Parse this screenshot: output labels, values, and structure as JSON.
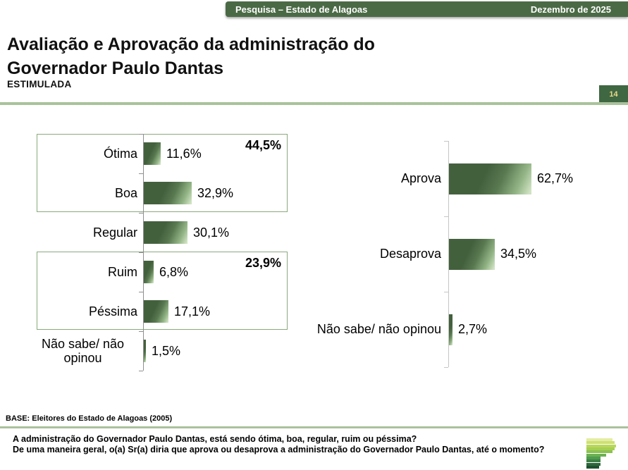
{
  "header": {
    "title": "Pesquisa – Estado de Alagoas",
    "date": "Dezembro de 2025"
  },
  "page": {
    "number": "14"
  },
  "title": {
    "line1": "Avaliação e Aprovação da administração do",
    "line2": "Governador Paulo Dantas",
    "subtitle": "ESTIMULADA"
  },
  "chart_data": [
    {
      "type": "bar",
      "orientation": "horizontal",
      "categories": [
        "Ótima",
        "Boa",
        "Regular",
        "Ruim",
        "Péssima",
        "Não sabe/ não opinou"
      ],
      "values": [
        11.6,
        32.9,
        30.1,
        6.8,
        17.1,
        1.5
      ],
      "value_labels": [
        "11,6%",
        "32,9%",
        "30,1%",
        "6,8%",
        "17,1%",
        "1,5%"
      ],
      "xlim": [
        0,
        100
      ],
      "grid": false,
      "groups": [
        {
          "label": "44,5%",
          "members": [
            "Ótima",
            "Boa"
          ]
        },
        {
          "label": "23,9%",
          "members": [
            "Ruim",
            "Péssima"
          ]
        }
      ]
    },
    {
      "type": "bar",
      "orientation": "horizontal",
      "categories": [
        "Aprova",
        "Desaprova",
        "Não sabe/ não opinou"
      ],
      "values": [
        62.7,
        34.5,
        2.7
      ],
      "value_labels": [
        "62,7%",
        "34,5%",
        "2,7%"
      ],
      "xlim": [
        0,
        100
      ],
      "grid": false
    }
  ],
  "footer": {
    "base": "BASE: Eleitores do Estado de Alagoas (2005)",
    "question1": "A administração do Governador Paulo Dantas, está sendo ótima, boa, regular, ruim ou péssima?",
    "question2": "De uma maneira geral, o(a) Sr(a) diria que aprova ou desaprova a administração do Governador Paulo Dantas, até o momento?"
  },
  "colors": {
    "header-green": "#4a6a45",
    "accent-light-green": "#a9c29b",
    "page-box-green": "#3f6741",
    "page-number-yellow": "#ead98b",
    "bar-dark": "#43603d",
    "bar-light": "#cfe2c2",
    "box-border": "#8aa97c"
  },
  "logo": {
    "icon": "bar-chart-logo",
    "bar_widths": [
      37,
      40,
      42,
      40,
      37,
      28,
      20,
      20,
      20,
      18
    ],
    "bar_colors": [
      "#e4eda4",
      "#cfe070",
      "#b9d75c",
      "#a6cf53",
      "#8cc252",
      "#6bb052",
      "#4f9b4e",
      "#3d7f46",
      "#2c663a",
      "#1e5030"
    ]
  }
}
